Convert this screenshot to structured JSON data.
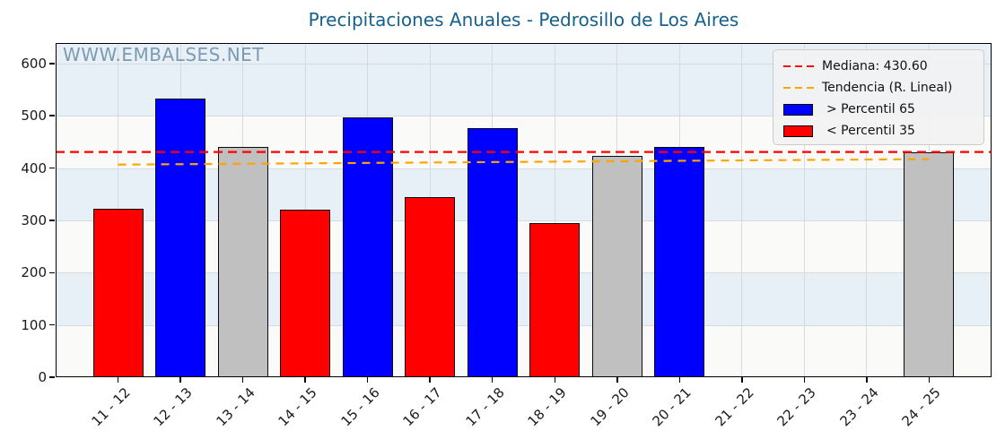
{
  "chart_data": {
    "type": "bar",
    "title": "Precipitaciones Anuales - Pedrosillo de Los Aires",
    "watermark": "WWW.EMBALSES.NET",
    "xlabel": "",
    "ylabel": "",
    "categories": [
      "11 - 12",
      "12 - 13",
      "13 - 14",
      "14 - 15",
      "15 - 16",
      "16 - 17",
      "17 - 18",
      "18 - 19",
      "19 - 20",
      "20 - 21",
      "21 - 22",
      "22 - 23",
      "23 - 24",
      "24 - 25"
    ],
    "values": [
      322,
      532,
      440,
      320,
      496,
      345,
      477,
      294,
      424,
      441,
      null,
      null,
      null,
      430
    ],
    "bar_classes": [
      "below_p35",
      "above_p65",
      "mid",
      "below_p35",
      "above_p65",
      "below_p35",
      "above_p65",
      "below_p35",
      "mid",
      "above_p65",
      null,
      null,
      null,
      "mid"
    ],
    "median": 430.6,
    "trend_line": {
      "y_start": 406.5,
      "y_end": 417
    },
    "ylim": [
      0,
      639
    ],
    "yticks": [
      0,
      100,
      200,
      300,
      400,
      500,
      600
    ],
    "grid": true,
    "colors": {
      "above_p65": "#0000fe",
      "below_p35": "#fe0000",
      "mid": "#c0c0c0",
      "median_line": "#ff0000",
      "trend_line": "#ffa500",
      "title": "#15608c",
      "band_blue": "#e7f0f6",
      "band_white": "#fafaf8"
    },
    "legend": {
      "position": "upper right",
      "entries": [
        {
          "type": "dashed-line",
          "color": "#ff0000",
          "label": "Mediana: 430.60"
        },
        {
          "type": "dashed-line",
          "color": "#ffa500",
          "label": "Tendencia (R. Lineal)"
        },
        {
          "type": "patch",
          "color": "#0000fe",
          "label": "> Percentil 65"
        },
        {
          "type": "patch",
          "color": "#fe0000",
          "label": "< Percentil 35"
        }
      ]
    }
  }
}
